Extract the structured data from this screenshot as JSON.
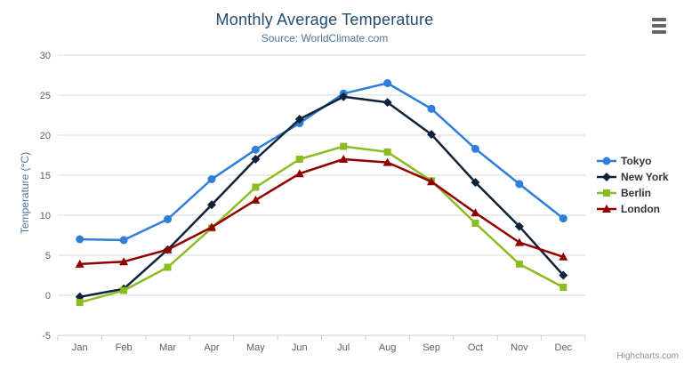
{
  "credit": "Highcharts.com",
  "context_menu": {
    "tooltip": "Chart context menu"
  },
  "theme": {
    "background": "#ffffff",
    "title_color": "#274b6d",
    "subtitle_color": "#4d759e",
    "axis_title_color": "#4d759e",
    "axis_label_color": "#606060",
    "grid_color": "#d8d8d8",
    "axis_line_color": "#c0d0e0",
    "legend_text_color": "#333333",
    "credit_color": "#909090",
    "menu_icon_color": "#666666"
  },
  "chart_data": {
    "type": "line",
    "title": "Monthly Average Temperature",
    "subtitle": "Source: WorldClimate.com",
    "xlabel": "",
    "ylabel": "Temperature (°C)",
    "ylim": [
      -5,
      30
    ],
    "ytick_step": 5,
    "grid": true,
    "legend_position": "right",
    "categories": [
      "Jan",
      "Feb",
      "Mar",
      "Apr",
      "May",
      "Jun",
      "Jul",
      "Aug",
      "Sep",
      "Oct",
      "Nov",
      "Dec"
    ],
    "series": [
      {
        "name": "Tokyo",
        "color": "#2f7ed8",
        "marker": "circle",
        "values": [
          7.0,
          6.9,
          9.5,
          14.5,
          18.2,
          21.5,
          25.2,
          26.5,
          23.3,
          18.3,
          13.9,
          9.6
        ]
      },
      {
        "name": "New York",
        "color": "#0d233a",
        "marker": "diamond",
        "values": [
          -0.2,
          0.8,
          5.7,
          11.3,
          17.0,
          22.0,
          24.8,
          24.1,
          20.1,
          14.1,
          8.6,
          2.5
        ]
      },
      {
        "name": "Berlin",
        "color": "#8bbc21",
        "marker": "square",
        "values": [
          -0.9,
          0.6,
          3.5,
          8.4,
          13.5,
          17.0,
          18.6,
          17.9,
          14.3,
          9.0,
          3.9,
          1.0
        ]
      },
      {
        "name": "London",
        "color": "#910000",
        "marker": "triangle",
        "values": [
          3.9,
          4.2,
          5.7,
          8.5,
          11.9,
          15.2,
          17.0,
          16.6,
          14.2,
          10.3,
          6.6,
          4.8
        ]
      }
    ]
  }
}
